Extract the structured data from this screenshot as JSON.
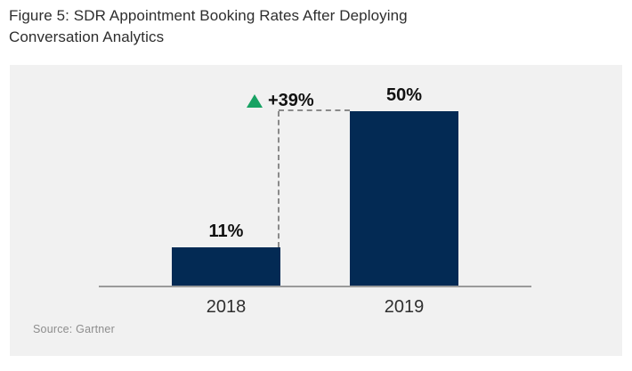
{
  "page": {
    "title": "Figure 5: SDR Appointment Booking Rates After Deploying Conversation Analytics",
    "source": "Source: Gartner"
  },
  "colors": {
    "bar_navy": "#032a54",
    "annotation_green": "#18a263",
    "panel_background": "#f1f1f1",
    "axis_line": "#9a9a9a",
    "dash_line": "#8a8a8a",
    "title_text": "#2e2e2e",
    "category_text": "#2f2f2f",
    "value_text": "#111111",
    "source_text": "#8d8d8d"
  },
  "chart_data": {
    "type": "bar",
    "title": "Figure 5: SDR Appointment Booking Rates After Deploying Conversation Analytics",
    "categories": [
      "2018",
      "2019"
    ],
    "values": [
      11,
      50
    ],
    "value_labels": [
      "11%",
      "50%"
    ],
    "unit": "%",
    "annotation": {
      "text": "+39%",
      "delta": 39,
      "icon": "triangle-up-icon"
    },
    "xlabel": "",
    "ylabel": "",
    "ylim": [
      0,
      55
    ],
    "grid": false,
    "legend": false,
    "source": "Gartner"
  }
}
